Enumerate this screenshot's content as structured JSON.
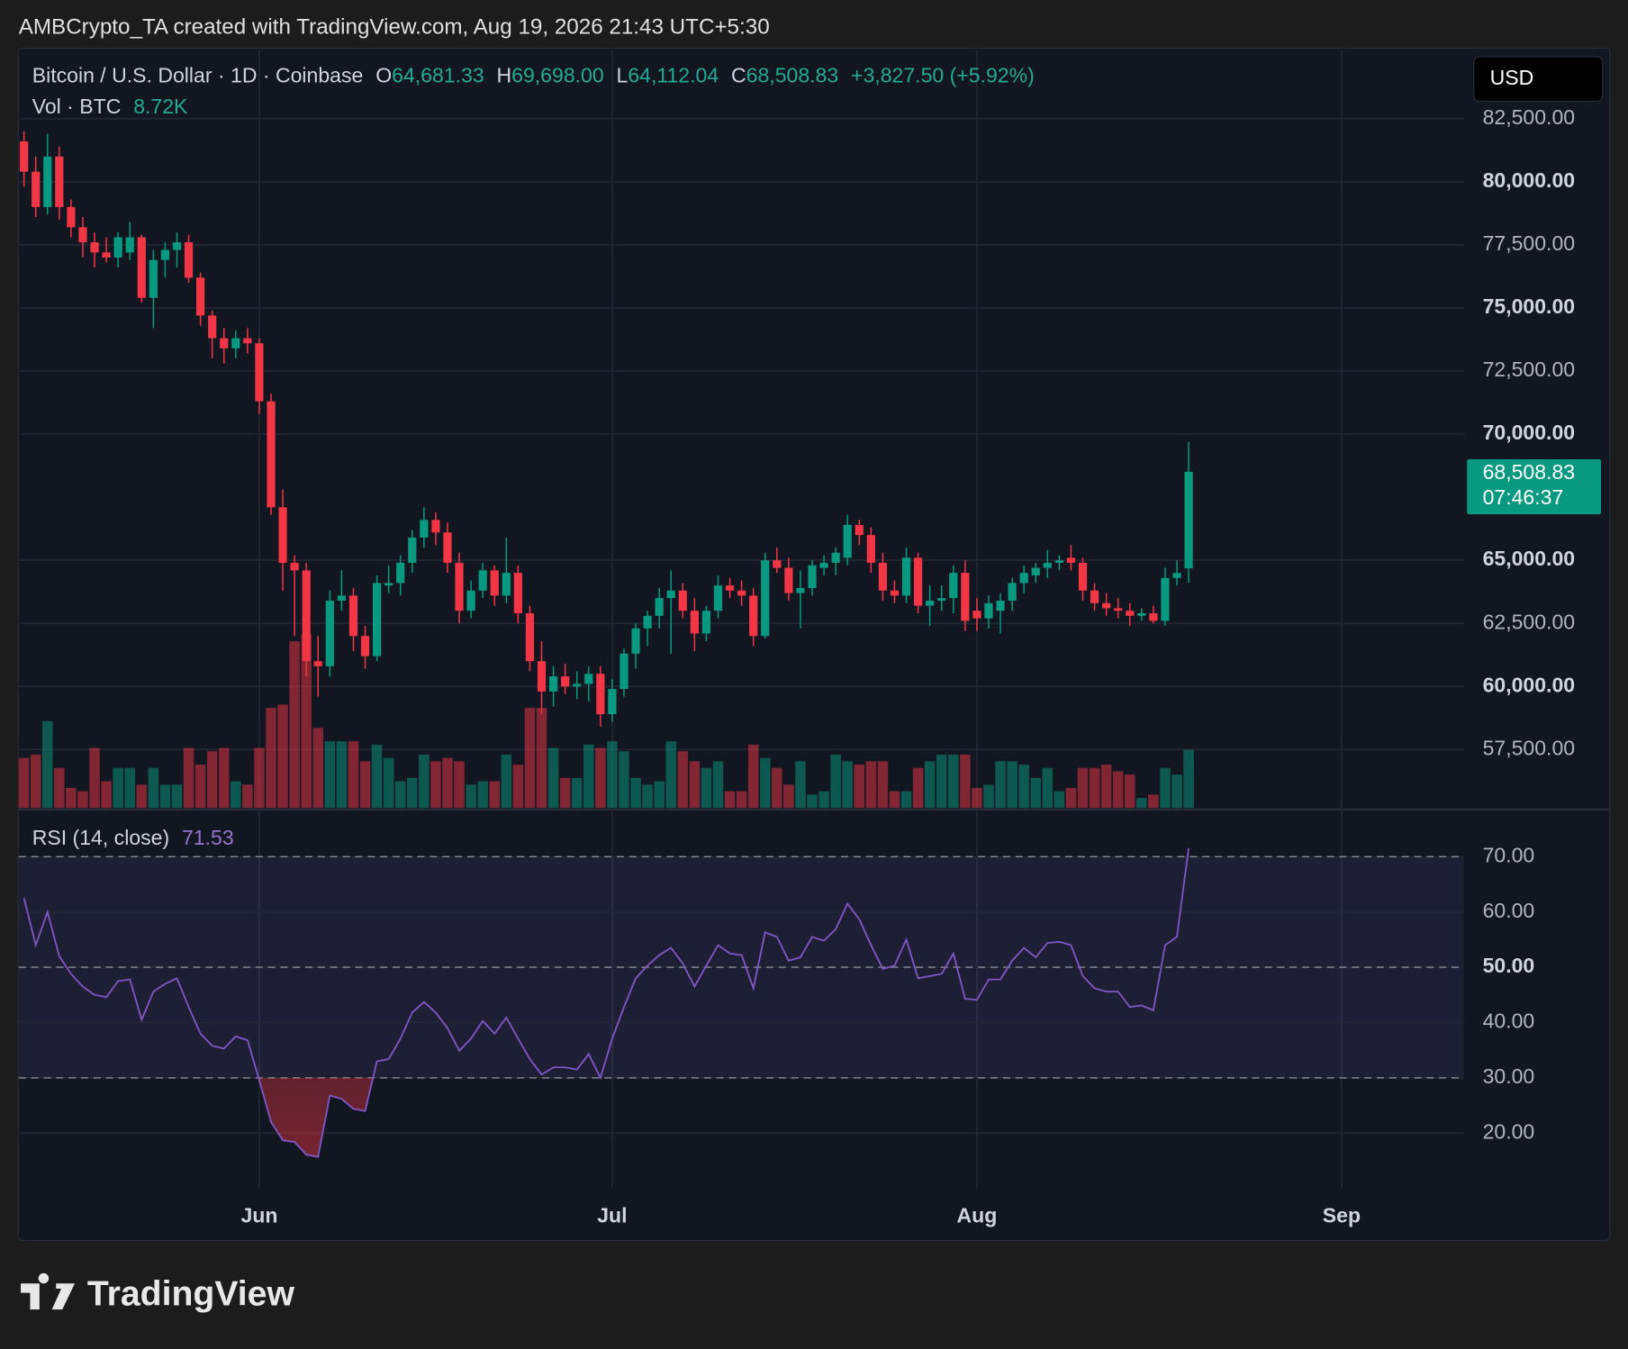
{
  "header": "AMBCrypto_TA created with TradingView.com, Aug 19, 2026 21:43 UTC+5:30",
  "logo": "TradingView",
  "chart_data": {
    "type": "candlestick",
    "symbol": "Bitcoin / U.S. Dollar · 1D · Coinbase",
    "ohlc_labels": [
      {
        "key": "O",
        "value": "64,681.33"
      },
      {
        "key": "H",
        "value": "69,698.00"
      },
      {
        "key": "L",
        "value": "64,112.04"
      },
      {
        "key": "C",
        "value": "68,508.83"
      }
    ],
    "change": "+3,827.50 (+5.92%)",
    "currency": "USD",
    "last_price_label": "68,508.83",
    "countdown": "07:46:37",
    "up_color": "#089981",
    "down_color": "#f23645",
    "open": [
      81600,
      80400,
      79000,
      81000,
      79000,
      78200,
      77600,
      77200,
      77000,
      77200,
      77800,
      75400,
      76900,
      77300,
      77600,
      76200,
      74700,
      73800,
      73400,
      73800,
      73600,
      71300,
      67100,
      64900,
      64600,
      61000,
      60800,
      63400,
      63600,
      62000,
      61200,
      64000,
      64100,
      64900,
      65900,
      66600,
      66100,
      64900,
      63000,
      63800,
      64600,
      63600,
      64500,
      62900,
      61000,
      59800,
      60400,
      60000,
      60100,
      60500,
      58900,
      59900,
      61300,
      62300,
      62800,
      63500,
      63800,
      63000,
      62100,
      63000,
      64000,
      63800,
      63600,
      62000,
      65000,
      64700,
      63700,
      63900,
      64700,
      64900,
      65100,
      66400,
      66000,
      64900,
      63800,
      63600,
      65100,
      63200,
      63400,
      63500,
      64500,
      63000,
      62700,
      63000,
      63400,
      64100,
      64400,
      64700,
      64900,
      65100,
      64900,
      63800,
      63300,
      63100,
      63000,
      62800,
      62900,
      62600,
      64300,
      64681.33
    ],
    "high": [
      82000,
      81000,
      81900,
      81400,
      79300,
      78600,
      78000,
      77800,
      78000,
      78400,
      77900,
      77300,
      77600,
      78000,
      77900,
      76400,
      74900,
      74200,
      74100,
      74200,
      73800,
      71600,
      67800,
      65200,
      64900,
      62000,
      63800,
      64600,
      63900,
      62400,
      64400,
      64800,
      65200,
      66200,
      67100,
      66900,
      66500,
      65300,
      64200,
      64900,
      64800,
      65900,
      64800,
      63200,
      61800,
      60800,
      60900,
      60600,
      60800,
      60800,
      60300,
      61500,
      62500,
      63000,
      63900,
      64600,
      64100,
      63500,
      63200,
      64400,
      64300,
      64200,
      63900,
      65300,
      65500,
      65100,
      64600,
      65000,
      65200,
      65500,
      66800,
      66600,
      66300,
      65300,
      64200,
      65500,
      65300,
      64000,
      64000,
      64800,
      65000,
      63500,
      63600,
      63700,
      64300,
      64800,
      64900,
      65400,
      65200,
      65600,
      65100,
      64100,
      63700,
      63500,
      63300,
      63100,
      63200,
      64700,
      65000,
      69698
    ],
    "low": [
      79800,
      78600,
      78700,
      78500,
      77800,
      77000,
      76600,
      76800,
      76600,
      76900,
      75200,
      74200,
      76200,
      76600,
      76000,
      74300,
      73000,
      72800,
      73000,
      73200,
      70800,
      66800,
      63800,
      62000,
      60400,
      59600,
      60400,
      63000,
      61400,
      60700,
      61000,
      63700,
      63600,
      64500,
      65500,
      65600,
      64500,
      62500,
      62700,
      63500,
      63200,
      63300,
      62500,
      60600,
      58900,
      59200,
      59700,
      59500,
      59400,
      58400,
      58600,
      59600,
      60700,
      61600,
      62300,
      61300,
      62700,
      61400,
      61800,
      62700,
      63500,
      63200,
      61600,
      61900,
      64500,
      63400,
      62300,
      63600,
      64400,
      64400,
      64800,
      65600,
      64500,
      63400,
      63300,
      63300,
      62900,
      62400,
      63000,
      62900,
      62200,
      62200,
      62300,
      62100,
      63000,
      63700,
      64100,
      64300,
      64600,
      64600,
      63400,
      63000,
      62800,
      62700,
      62400,
      62600,
      62500,
      62400,
      64000,
      64112.04
    ],
    "close": [
      80400,
      79000,
      81000,
      79000,
      78200,
      77600,
      77200,
      77000,
      77800,
      77800,
      75400,
      76900,
      77300,
      77600,
      76200,
      74700,
      73800,
      73400,
      73800,
      73600,
      71300,
      67100,
      64900,
      64600,
      61000,
      60800,
      63400,
      63600,
      62000,
      61200,
      64100,
      64100,
      64900,
      65900,
      66600,
      66100,
      64900,
      63000,
      63800,
      64600,
      63600,
      64500,
      62900,
      61000,
      59800,
      60400,
      60000,
      60100,
      60500,
      58900,
      59900,
      61300,
      62300,
      62800,
      63500,
      63800,
      63000,
      62100,
      63000,
      64000,
      63800,
      63600,
      62000,
      65000,
      64700,
      63700,
      63900,
      64800,
      64900,
      65300,
      66400,
      66000,
      64900,
      63800,
      63600,
      65100,
      63200,
      63400,
      63500,
      64500,
      62600,
      62700,
      63300,
      63400,
      64100,
      64500,
      64700,
      64900,
      65000,
      64900,
      63800,
      63300,
      63100,
      63000,
      62800,
      62900,
      62600,
      64300,
      64500,
      68508.83
    ],
    "ylim": [
      55185,
      85226
    ],
    "yticks": [
      {
        "value": 57500,
        "label": "57,500.00"
      },
      {
        "value": 60000,
        "label": "60,000.00"
      },
      {
        "value": 62500,
        "label": "62,500.00"
      },
      {
        "value": 65000,
        "label": "65,000.00"
      },
      {
        "value": 70000,
        "label": "70,000.00"
      },
      {
        "value": 72500,
        "label": "72,500.00"
      },
      {
        "value": 75000,
        "label": "75,000.00"
      },
      {
        "value": 77500,
        "label": "77,500.00"
      },
      {
        "value": 80000,
        "label": "80,000.00"
      },
      {
        "value": 82500,
        "label": "82,500.00"
      }
    ],
    "xlim": [
      -0.45,
      122.4
    ],
    "xticks": [
      {
        "value": 20,
        "label": "Jun"
      },
      {
        "value": 50,
        "label": "Jul"
      },
      {
        "value": 81,
        "label": "Aug"
      },
      {
        "value": 112,
        "label": "Sep"
      }
    ],
    "grid": true,
    "volume": {
      "label": "Vol · BTC",
      "value_label": "8.72K",
      "values": [
        7500,
        8000,
        13000,
        6000,
        3000,
        2500,
        9000,
        4000,
        6000,
        6000,
        3500,
        6000,
        3500,
        3500,
        9000,
        6500,
        8500,
        9000,
        4000,
        3500,
        9000,
        15000,
        15500,
        25000,
        26000,
        12000,
        10000,
        10000,
        10000,
        7000,
        9500,
        7500,
        4000,
        4500,
        8000,
        7000,
        7500,
        7000,
        3500,
        4000,
        4000,
        8000,
        6500,
        15000,
        15000,
        9000,
        4500,
        4500,
        9500,
        9000,
        10000,
        8500,
        4500,
        3500,
        4000,
        10000,
        8500,
        7000,
        6000,
        7000,
        2500,
        2500,
        9500,
        7500,
        6000,
        3500,
        7000,
        2000,
        2500,
        8000,
        7000,
        6500,
        7000,
        7000,
        2500,
        2500,
        6000,
        7000,
        8000,
        8000,
        8000,
        3000,
        3500,
        7000,
        7000,
        6500,
        4500,
        6000,
        2500,
        3000,
        6000,
        6000,
        6500,
        5500,
        5000,
        1500,
        2000,
        6000,
        5000,
        8720
      ]
    },
    "rsi": {
      "label": "RSI (14, close)",
      "value_label": "71.53",
      "color": "#7e57c2",
      "values": [
        62.5,
        54,
        60,
        52,
        48.8,
        46.5,
        45,
        44.6,
        47.5,
        47.8,
        40.5,
        45.6,
        47,
        48,
        42.8,
        38,
        35.8,
        35.3,
        37.5,
        36.8,
        29.6,
        22,
        18.7,
        18.4,
        16.1,
        15.7,
        26.8,
        26.2,
        24.4,
        24,
        33,
        33.4,
        37.1,
        41.8,
        43.7,
        41.8,
        39,
        34.9,
        37.1,
        40.3,
        38,
        40.9,
        37.1,
        33.4,
        30.6,
        31.9,
        31.9,
        31.5,
        34.3,
        30,
        37.1,
        42.8,
        48,
        50.3,
        52.2,
        53.5,
        50.7,
        46.5,
        50.3,
        54,
        52.5,
        52.2,
        46.2,
        56.3,
        55.5,
        51.2,
        51.8,
        55.5,
        54.8,
        56.9,
        61.5,
        58.7,
        54,
        49.7,
        50.3,
        55,
        48,
        48.4,
        48.8,
        52.5,
        44.3,
        44.1,
        47.8,
        47.8,
        51.2,
        53.5,
        51.8,
        54.4,
        54.6,
        54,
        48.4,
        46.2,
        45.6,
        45.6,
        42.8,
        43.1,
        42.2,
        54,
        55.5,
        71.53
      ],
      "ylim": [
        9.9,
        77.5
      ],
      "yticks": [
        {
          "value": 20,
          "label": "20.00"
        },
        {
          "value": 30,
          "label": "30.00"
        },
        {
          "value": 40,
          "label": "40.00"
        },
        {
          "value": 50,
          "label": "50.00"
        },
        {
          "value": 60,
          "label": "60.00"
        },
        {
          "value": 70,
          "label": "70.00"
        }
      ],
      "levels": [
        70,
        50,
        30
      ]
    }
  }
}
